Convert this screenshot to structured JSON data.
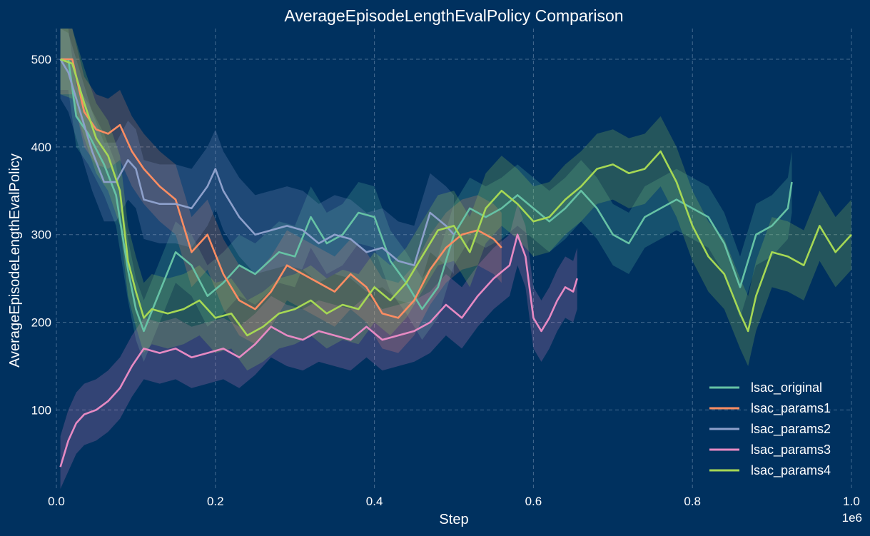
{
  "chart_data": {
    "type": "line",
    "title": "AverageEpisodeLengthEvalPolicy Comparison",
    "xlabel": "Step",
    "ylabel": "AverageEpisodeLengthEvalPolicy",
    "x_scale_label": "1e6",
    "xlim": [
      0,
      1.0
    ],
    "ylim": [
      10,
      535
    ],
    "x_ticks": [
      "0.0",
      "0.2",
      "0.4",
      "0.6",
      "0.8",
      "1.0"
    ],
    "x_tick_values": [
      0,
      0.2,
      0.4,
      0.6,
      0.8,
      1.0
    ],
    "y_ticks": [
      "100",
      "200",
      "300",
      "400",
      "500"
    ],
    "y_tick_values": [
      100,
      200,
      300,
      400,
      500
    ],
    "grid": true,
    "legend_position": "bottom-right",
    "background_color": "#00315F",
    "series": [
      {
        "name": "lsac_original",
        "color": "#66c2a5",
        "band": 35,
        "points": [
          [
            0.005,
            500
          ],
          [
            0.015,
            500
          ],
          [
            0.025,
            435
          ],
          [
            0.04,
            415
          ],
          [
            0.06,
            380
          ],
          [
            0.075,
            345
          ],
          [
            0.09,
            260
          ],
          [
            0.1,
            215
          ],
          [
            0.11,
            190
          ],
          [
            0.13,
            235
          ],
          [
            0.15,
            280
          ],
          [
            0.17,
            265
          ],
          [
            0.19,
            230
          ],
          [
            0.21,
            245
          ],
          [
            0.23,
            265
          ],
          [
            0.25,
            255
          ],
          [
            0.28,
            280
          ],
          [
            0.3,
            275
          ],
          [
            0.32,
            320
          ],
          [
            0.34,
            290
          ],
          [
            0.36,
            300
          ],
          [
            0.38,
            325
          ],
          [
            0.4,
            320
          ],
          [
            0.42,
            270
          ],
          [
            0.44,
            245
          ],
          [
            0.46,
            215
          ],
          [
            0.48,
            240
          ],
          [
            0.5,
            300
          ],
          [
            0.52,
            330
          ],
          [
            0.54,
            320
          ],
          [
            0.56,
            330
          ],
          [
            0.58,
            345
          ],
          [
            0.6,
            330
          ],
          [
            0.62,
            315
          ],
          [
            0.64,
            330
          ],
          [
            0.66,
            350
          ],
          [
            0.68,
            330
          ],
          [
            0.7,
            300
          ],
          [
            0.72,
            290
          ],
          [
            0.74,
            320
          ],
          [
            0.76,
            330
          ],
          [
            0.78,
            340
          ],
          [
            0.8,
            330
          ],
          [
            0.82,
            320
          ],
          [
            0.84,
            290
          ],
          [
            0.86,
            240
          ],
          [
            0.88,
            300
          ],
          [
            0.9,
            310
          ],
          [
            0.92,
            330
          ],
          [
            0.925,
            360
          ]
        ]
      },
      {
        "name": "lsac_params1",
        "color": "#fc8d62",
        "band": 40,
        "points": [
          [
            0.005,
            500
          ],
          [
            0.02,
            500
          ],
          [
            0.035,
            440
          ],
          [
            0.05,
            420
          ],
          [
            0.065,
            415
          ],
          [
            0.08,
            425
          ],
          [
            0.095,
            395
          ],
          [
            0.11,
            375
          ],
          [
            0.13,
            355
          ],
          [
            0.15,
            340
          ],
          [
            0.17,
            280
          ],
          [
            0.19,
            300
          ],
          [
            0.21,
            255
          ],
          [
            0.23,
            225
          ],
          [
            0.25,
            215
          ],
          [
            0.27,
            235
          ],
          [
            0.29,
            265
          ],
          [
            0.31,
            255
          ],
          [
            0.33,
            245
          ],
          [
            0.35,
            235
          ],
          [
            0.37,
            255
          ],
          [
            0.39,
            240
          ],
          [
            0.41,
            210
          ],
          [
            0.43,
            205
          ],
          [
            0.45,
            225
          ],
          [
            0.47,
            260
          ],
          [
            0.49,
            285
          ],
          [
            0.51,
            300
          ],
          [
            0.53,
            305
          ],
          [
            0.55,
            295
          ],
          [
            0.56,
            285
          ]
        ]
      },
      {
        "name": "lsac_params2",
        "color": "#8da0cb",
        "band": 45,
        "points": [
          [
            0.005,
            500
          ],
          [
            0.015,
            485
          ],
          [
            0.03,
            440
          ],
          [
            0.045,
            395
          ],
          [
            0.06,
            360
          ],
          [
            0.075,
            360
          ],
          [
            0.09,
            385
          ],
          [
            0.1,
            375
          ],
          [
            0.11,
            340
          ],
          [
            0.13,
            335
          ],
          [
            0.15,
            335
          ],
          [
            0.17,
            330
          ],
          [
            0.19,
            355
          ],
          [
            0.2,
            375
          ],
          [
            0.21,
            350
          ],
          [
            0.23,
            320
          ],
          [
            0.25,
            300
          ],
          [
            0.27,
            305
          ],
          [
            0.29,
            310
          ],
          [
            0.31,
            305
          ],
          [
            0.33,
            290
          ],
          [
            0.35,
            300
          ],
          [
            0.37,
            295
          ],
          [
            0.39,
            280
          ],
          [
            0.41,
            285
          ],
          [
            0.43,
            270
          ],
          [
            0.45,
            265
          ],
          [
            0.47,
            325
          ],
          [
            0.49,
            310
          ],
          [
            0.5,
            300
          ]
        ]
      },
      {
        "name": "lsac_params3",
        "color": "#e78ac3",
        "band": 35,
        "points": [
          [
            0.005,
            35
          ],
          [
            0.015,
            65
          ],
          [
            0.025,
            85
          ],
          [
            0.035,
            95
          ],
          [
            0.05,
            100
          ],
          [
            0.065,
            110
          ],
          [
            0.08,
            125
          ],
          [
            0.095,
            150
          ],
          [
            0.11,
            170
          ],
          [
            0.13,
            165
          ],
          [
            0.15,
            170
          ],
          [
            0.17,
            160
          ],
          [
            0.19,
            165
          ],
          [
            0.21,
            170
          ],
          [
            0.23,
            160
          ],
          [
            0.25,
            175
          ],
          [
            0.27,
            195
          ],
          [
            0.29,
            185
          ],
          [
            0.31,
            180
          ],
          [
            0.33,
            190
          ],
          [
            0.35,
            185
          ],
          [
            0.37,
            180
          ],
          [
            0.39,
            195
          ],
          [
            0.41,
            180
          ],
          [
            0.43,
            185
          ],
          [
            0.45,
            190
          ],
          [
            0.47,
            200
          ],
          [
            0.49,
            220
          ],
          [
            0.51,
            205
          ],
          [
            0.53,
            230
          ],
          [
            0.55,
            250
          ],
          [
            0.57,
            265
          ],
          [
            0.58,
            300
          ],
          [
            0.59,
            275
          ],
          [
            0.6,
            205
          ],
          [
            0.61,
            190
          ],
          [
            0.62,
            205
          ],
          [
            0.63,
            225
          ],
          [
            0.64,
            240
          ],
          [
            0.65,
            235
          ],
          [
            0.655,
            250
          ]
        ]
      },
      {
        "name": "lsac_params4",
        "color": "#a6d854",
        "band": 40,
        "points": [
          [
            0.005,
            500
          ],
          [
            0.02,
            495
          ],
          [
            0.035,
            450
          ],
          [
            0.05,
            410
          ],
          [
            0.065,
            390
          ],
          [
            0.08,
            350
          ],
          [
            0.09,
            270
          ],
          [
            0.1,
            235
          ],
          [
            0.11,
            205
          ],
          [
            0.12,
            215
          ],
          [
            0.14,
            210
          ],
          [
            0.16,
            215
          ],
          [
            0.18,
            225
          ],
          [
            0.2,
            205
          ],
          [
            0.22,
            210
          ],
          [
            0.24,
            185
          ],
          [
            0.26,
            195
          ],
          [
            0.28,
            210
          ],
          [
            0.3,
            215
          ],
          [
            0.32,
            225
          ],
          [
            0.34,
            210
          ],
          [
            0.36,
            220
          ],
          [
            0.38,
            215
          ],
          [
            0.4,
            240
          ],
          [
            0.42,
            225
          ],
          [
            0.44,
            245
          ],
          [
            0.46,
            275
          ],
          [
            0.48,
            305
          ],
          [
            0.5,
            310
          ],
          [
            0.52,
            280
          ],
          [
            0.54,
            330
          ],
          [
            0.56,
            350
          ],
          [
            0.58,
            335
          ],
          [
            0.6,
            315
          ],
          [
            0.62,
            320
          ],
          [
            0.64,
            340
          ],
          [
            0.66,
            355
          ],
          [
            0.68,
            375
          ],
          [
            0.7,
            380
          ],
          [
            0.72,
            370
          ],
          [
            0.74,
            375
          ],
          [
            0.76,
            395
          ],
          [
            0.78,
            360
          ],
          [
            0.8,
            310
          ],
          [
            0.82,
            275
          ],
          [
            0.84,
            255
          ],
          [
            0.86,
            210
          ],
          [
            0.87,
            190
          ],
          [
            0.88,
            230
          ],
          [
            0.9,
            280
          ],
          [
            0.92,
            275
          ],
          [
            0.94,
            265
          ],
          [
            0.96,
            310
          ],
          [
            0.98,
            280
          ],
          [
            1.0,
            300
          ]
        ]
      }
    ]
  }
}
